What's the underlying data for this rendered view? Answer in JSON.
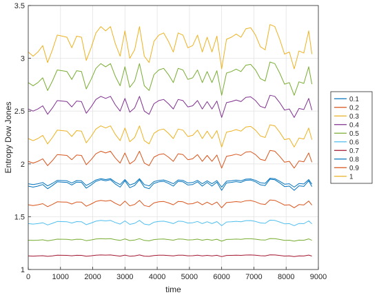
{
  "chart_data": {
    "type": "line",
    "title": "",
    "xlabel": "time",
    "ylabel": "Entropy Dow Jones",
    "xlim": [
      0,
      9000
    ],
    "ylim": [
      1,
      3.5
    ],
    "xticks": [
      0,
      1000,
      2000,
      3000,
      4000,
      5000,
      6000,
      7000,
      8000,
      9000
    ],
    "xtick_labels": [
      "0",
      "1000",
      "2000",
      "3000",
      "4000",
      "5000",
      "6000",
      "7000",
      "8000",
      "9000"
    ],
    "yticks": [
      1,
      1.5,
      2,
      2.5,
      3,
      3.5
    ],
    "ytick_labels": [
      "1",
      "1.5",
      "2",
      "2.5",
      "3",
      "3.5"
    ],
    "grid": true,
    "legend_position": "right-outside",
    "x": [
      0,
      150,
      300,
      450,
      600,
      750,
      900,
      1050,
      1200,
      1350,
      1500,
      1650,
      1800,
      1950,
      2100,
      2250,
      2400,
      2550,
      2700,
      2850,
      3000,
      3150,
      3300,
      3450,
      3600,
      3750,
      3900,
      4050,
      4200,
      4350,
      4500,
      4650,
      4800,
      4950,
      5100,
      5250,
      5400,
      5550,
      5700,
      5850,
      6000,
      6150,
      6300,
      6450,
      6600,
      6750,
      6900,
      7050,
      7200,
      7350,
      7500,
      7650,
      7800,
      7950,
      8100,
      8250,
      8400,
      8550,
      8700,
      8800
    ],
    "series": [
      {
        "name": "0.1",
        "color": "#0072BD",
        "base": 1.8,
        "amp": 0.05
      },
      {
        "name": "0.2",
        "color": "#D95319",
        "base": 1.62,
        "amp": 0.035
      },
      {
        "name": "0.3",
        "color": "#EDB120",
        "base": 3.1,
        "amp": 0.2
      },
      {
        "name": "0.4",
        "color": "#7E2F8E",
        "base": 2.54,
        "amp": 0.1
      },
      {
        "name": "0.5",
        "color": "#77AC30",
        "base": 2.8,
        "amp": 0.15
      },
      {
        "name": "0.6",
        "color": "#4DBEEE",
        "base": 1.44,
        "amp": 0.025
      },
      {
        "name": "0.7",
        "color": "#A2142F",
        "base": 1.13,
        "amp": 0.008
      },
      {
        "name": "0.8",
        "color": "#0072BD",
        "base": 1.82,
        "amp": 0.04
      },
      {
        "name": "0.9",
        "color": "#D95319",
        "base": 2.04,
        "amp": 0.08
      },
      {
        "name": "1",
        "color": "#EDB120",
        "base": 2.26,
        "amp": 0.1
      }
    ],
    "extra_series": [
      {
        "color": "#77AC30",
        "base": 1.28,
        "amp": 0.012
      }
    ],
    "pattern": [
      -0.2,
      -0.4,
      -0.2,
      0.1,
      -0.7,
      -0.1,
      0.6,
      0.55,
      0.5,
      0.0,
      0.55,
      0.5,
      -0.6,
      0.0,
      0.7,
      1.0,
      0.8,
      1.0,
      0.2,
      -0.4,
      0.8,
      -0.5,
      -0.1,
      1.0,
      -0.4,
      -0.7,
      0.3,
      0.6,
      0.7,
      0.3,
      -0.2,
      0.7,
      0.6,
      0.0,
      0.1,
      0.6,
      -0.2,
      0.5,
      -0.2,
      0.55,
      -1.0,
      0.4,
      0.5,
      0.65,
      0.5,
      0.9,
      0.95,
      0.6,
      0.05,
      -0.1,
      1.1,
      1.0,
      0.4,
      -0.3,
      -0.2,
      -1.0,
      -0.15,
      -0.25,
      0.8,
      -0.3
    ]
  }
}
